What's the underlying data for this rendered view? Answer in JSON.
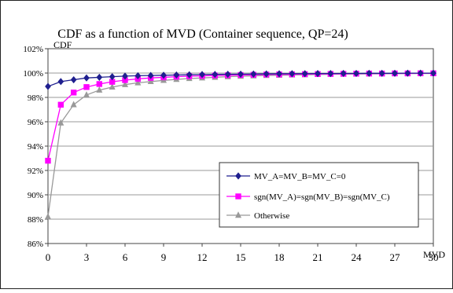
{
  "chart_data": {
    "type": "line",
    "title": "CDF as a function of MVD (Container sequence, QP=24)",
    "xlabel": "MVD",
    "ylabel": "CDF",
    "xlim": [
      0,
      30
    ],
    "ylim": [
      86,
      102
    ],
    "x_ticks": [
      0,
      3,
      6,
      9,
      12,
      15,
      18,
      21,
      24,
      27,
      30
    ],
    "y_ticks": [
      "86%",
      "88%",
      "90%",
      "92%",
      "94%",
      "96%",
      "98%",
      "100%",
      "102%"
    ],
    "y_tick_values": [
      86,
      88,
      90,
      92,
      94,
      96,
      98,
      100,
      102
    ],
    "grid": "horizontal",
    "legend_position": "lower-right",
    "x": [
      0,
      1,
      2,
      3,
      4,
      5,
      6,
      7,
      8,
      9,
      10,
      11,
      12,
      13,
      14,
      15,
      16,
      17,
      18,
      19,
      20,
      21,
      22,
      23,
      24,
      25,
      26,
      27,
      28,
      29,
      30
    ],
    "series": [
      {
        "name": "MV_A=MV_B=MV_C=0",
        "color": "#1f1f8f",
        "marker": "diamond",
        "values": [
          98.9,
          99.3,
          99.45,
          99.6,
          99.65,
          99.7,
          99.75,
          99.78,
          99.8,
          99.82,
          99.84,
          99.86,
          99.88,
          99.89,
          99.9,
          99.91,
          99.92,
          99.93,
          99.94,
          99.95,
          99.95,
          99.96,
          99.96,
          99.97,
          99.97,
          99.98,
          99.98,
          99.98,
          99.99,
          99.99,
          99.99
        ]
      },
      {
        "name": "sgn(MV_A)=sgn(MV_B)=sgn(MV_C)",
        "color": "#ff00ff",
        "marker": "square",
        "values": [
          92.8,
          97.4,
          98.4,
          98.85,
          99.1,
          99.28,
          99.42,
          99.52,
          99.6,
          99.65,
          99.7,
          99.74,
          99.77,
          99.8,
          99.82,
          99.84,
          99.86,
          99.88,
          99.89,
          99.9,
          99.91,
          99.92,
          99.93,
          99.94,
          99.95,
          99.96,
          99.96,
          99.97,
          99.97,
          99.98,
          99.98
        ]
      },
      {
        "name": "Otherwise",
        "color": "#999999",
        "marker": "triangle",
        "values": [
          88.2,
          95.9,
          97.4,
          98.2,
          98.6,
          98.85,
          99.05,
          99.2,
          99.3,
          99.4,
          99.48,
          99.55,
          99.6,
          99.65,
          99.7,
          99.74,
          99.77,
          99.8,
          99.82,
          99.84,
          99.86,
          99.88,
          99.9,
          99.91,
          99.92,
          99.93,
          99.94,
          99.95,
          99.96,
          99.96,
          99.97
        ]
      }
    ]
  }
}
